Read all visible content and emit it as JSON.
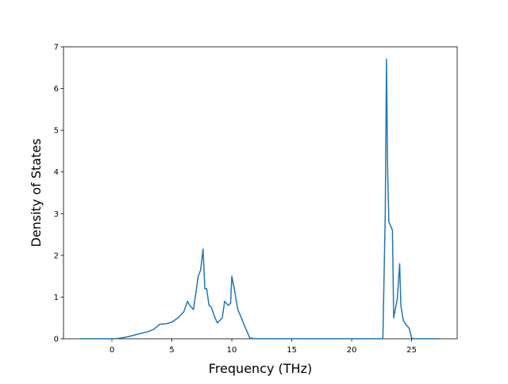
{
  "chart_data": {
    "type": "line",
    "x_label": "Frequency (THz)",
    "y_label": "Density of States",
    "x": [
      -2.6,
      0,
      0.5,
      1,
      1.5,
      2,
      3,
      3.5,
      4,
      4.5,
      5,
      5.5,
      6,
      6.3,
      6.5,
      6.8,
      7,
      7.2,
      7.4,
      7.6,
      7.75,
      7.9,
      8.1,
      8.3,
      8.6,
      8.8,
      9.2,
      9.4,
      9.7,
      9.9,
      10,
      10.2,
      10.5,
      10.8,
      11,
      11.5,
      12,
      22.6,
      22.8,
      22.9,
      23.0,
      23.1,
      23.4,
      23.5,
      23.8,
      24.0,
      24.1,
      24.3,
      24.5,
      24.8,
      25,
      25.2,
      27.3
    ],
    "values": [
      0,
      0,
      0.01,
      0.03,
      0.06,
      0.1,
      0.17,
      0.23,
      0.35,
      0.36,
      0.4,
      0.5,
      0.65,
      0.9,
      0.8,
      0.7,
      1.1,
      1.5,
      1.65,
      2.15,
      1.2,
      1.2,
      0.8,
      0.75,
      0.5,
      0.38,
      0.5,
      0.9,
      0.8,
      0.85,
      1.5,
      1.2,
      0.7,
      0.5,
      0.35,
      0.02,
      0,
      0,
      3.0,
      6.7,
      4.0,
      2.8,
      2.6,
      0.5,
      0.95,
      1.8,
      0.8,
      0.45,
      0.35,
      0.25,
      0.02,
      0,
      0
    ],
    "color": "#1f77b4",
    "xlim": [
      -4.04,
      28.8
    ],
    "ylim": [
      0,
      7
    ],
    "xticks": [
      0,
      5,
      10,
      15,
      20,
      25
    ],
    "yticks": [
      0,
      1,
      2,
      3,
      4,
      5,
      6,
      7
    ]
  }
}
